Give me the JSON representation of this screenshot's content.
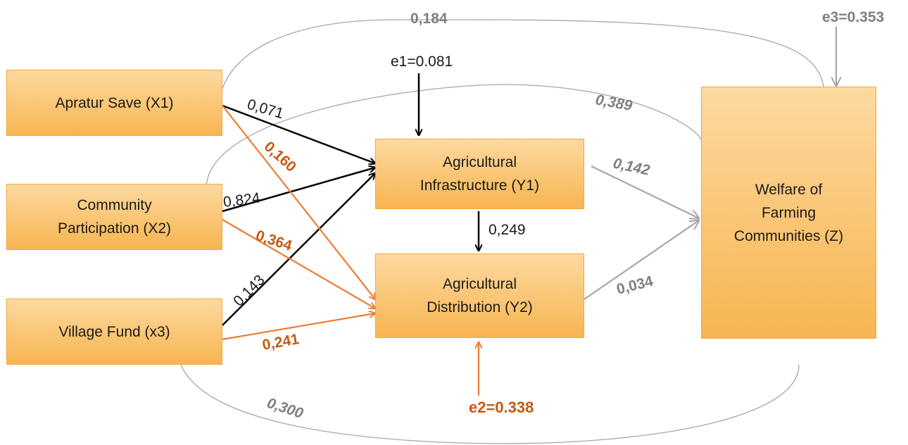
{
  "nodes": {
    "x1": {
      "lines": [
        "Apratur Save (X1)"
      ]
    },
    "x2": {
      "lines": [
        "Community",
        "Participation (X2)"
      ]
    },
    "x3": {
      "lines": [
        "Village Fund (x3)"
      ]
    },
    "y1": {
      "lines": [
        "Agricultural",
        "Infrastructure (Y1)"
      ]
    },
    "y2": {
      "lines": [
        "Agricultural",
        "Distribution (Y2)"
      ]
    },
    "z": {
      "lines": [
        "Welfare of",
        "Farming",
        "Communities (Z)"
      ]
    }
  },
  "labels": {
    "x1_y1": "0,071",
    "x2_y1": "0,824",
    "x3_y1": "0,143",
    "x1_y2": "0,160",
    "x2_y2": "0,364",
    "x3_y2": "0,241",
    "y1_y2": "0,249",
    "y1_z": "0,142",
    "y2_z": "0,034",
    "x1_z": "0,184",
    "x2_z": "0,389",
    "x3_z": "0,300",
    "e1": "e1=0.081",
    "e2": "e2=0.338",
    "e3": "e3=0.353"
  },
  "colors": {
    "node_fill": "#f9c46b",
    "node_border": "#f2a93b",
    "black_path": "#000000",
    "orange_path": "#ed7d31",
    "orange_label": "#c55a11",
    "gray_path": "#a6a6a6",
    "gray_label": "#7f7f7f"
  }
}
